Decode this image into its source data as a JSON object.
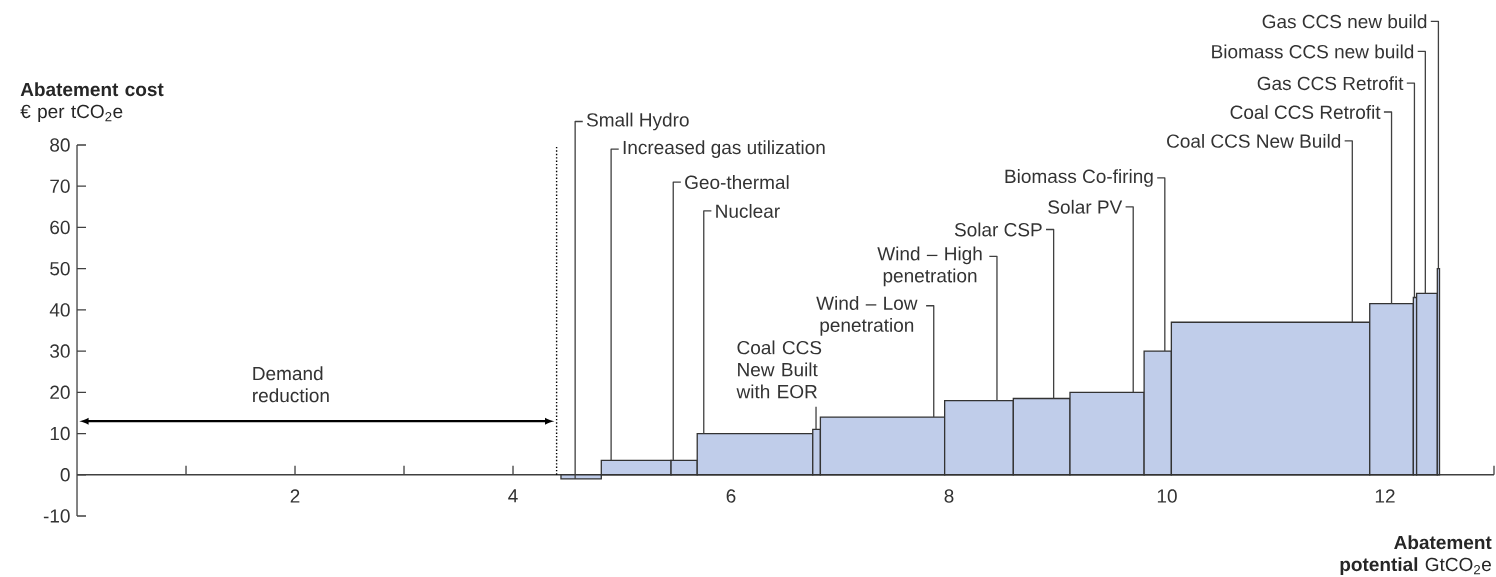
{
  "chart_data": {
    "type": "histogram",
    "bins": [
      4.44,
      4.81,
      5.45,
      5.69,
      6.75,
      6.82,
      7.96,
      8.59,
      9.11,
      9.79,
      10.04,
      11.86,
      12.26,
      12.29,
      12.48,
      12.5
    ],
    "values": [
      -1,
      3.5,
      3.5,
      10,
      11,
      14,
      18,
      18.5,
      20,
      30,
      37,
      41.5,
      43,
      44,
      50
    ],
    "color": "#c0cdea",
    "xlim": [
      0,
      13
    ],
    "ylim": [
      -10,
      80
    ],
    "xticks": [
      {
        "value": 1,
        "label": null
      },
      2,
      {
        "value": 3,
        "label": null
      },
      4,
      {
        "value": 5,
        "label": null
      },
      6,
      {
        "value": 7,
        "label": null
      },
      8,
      {
        "value": 9,
        "label": null
      },
      10,
      {
        "value": 11,
        "label": null
      },
      12,
      {
        "value": 13,
        "label": null
      }
    ],
    "yticks": [
      -10,
      0,
      10,
      20,
      30,
      40,
      50,
      60,
      70,
      80
    ],
    "xlabel": "**Abatement potential** GtCO$_{2}$e",
    "ylabel": "**Abatement cost** € per tCO$_{2}$e",
    "ref_lines": [
      {
        "axis": "x",
        "value": 4.4,
        "label": null,
        "line_style": "dotted"
      }
    ],
    "annotations": [
      "Demand reduction",
      {
        "text": "Small Hydro",
        "x": 4.57,
        "y": -1
      },
      {
        "text": "Increased gas utilization",
        "x": 4.9,
        "y": 3.5
      },
      {
        "text": "Geo-thermal",
        "x": 5.47,
        "y": 3.5
      },
      {
        "text": "Nuclear",
        "x": 5.75,
        "y": 10
      },
      {
        "text": "Coal CCS New Built with EOR",
        "x": 6.78,
        "y": 11
      },
      {
        "text": "Wind – Low penetration",
        "x": 7.86,
        "y": 14
      },
      {
        "text": "Wind – High penetration",
        "x": 8.44,
        "y": 18
      },
      {
        "text": "Solar CSP",
        "x": 8.96,
        "y": 18.5
      },
      {
        "text": "Solar PV",
        "x": 9.69,
        "y": 20
      },
      {
        "text": "Biomass Co-firing",
        "x": 9.98,
        "y": 30
      },
      {
        "text": "Coal CCS New Build",
        "x": 11.7,
        "y": 37
      },
      {
        "text": "Coal CCS Retrofit",
        "x": 12.06,
        "y": 41.5
      },
      {
        "text": "Gas CCS Retrofit",
        "x": 12.27,
        "y": 43
      },
      {
        "text": "Biomass CCS new build",
        "x": 12.37,
        "y": 44
      },
      {
        "text": "Gas CCS new build",
        "x": 12.49,
        "y": 50
      }
    ]
  }
}
